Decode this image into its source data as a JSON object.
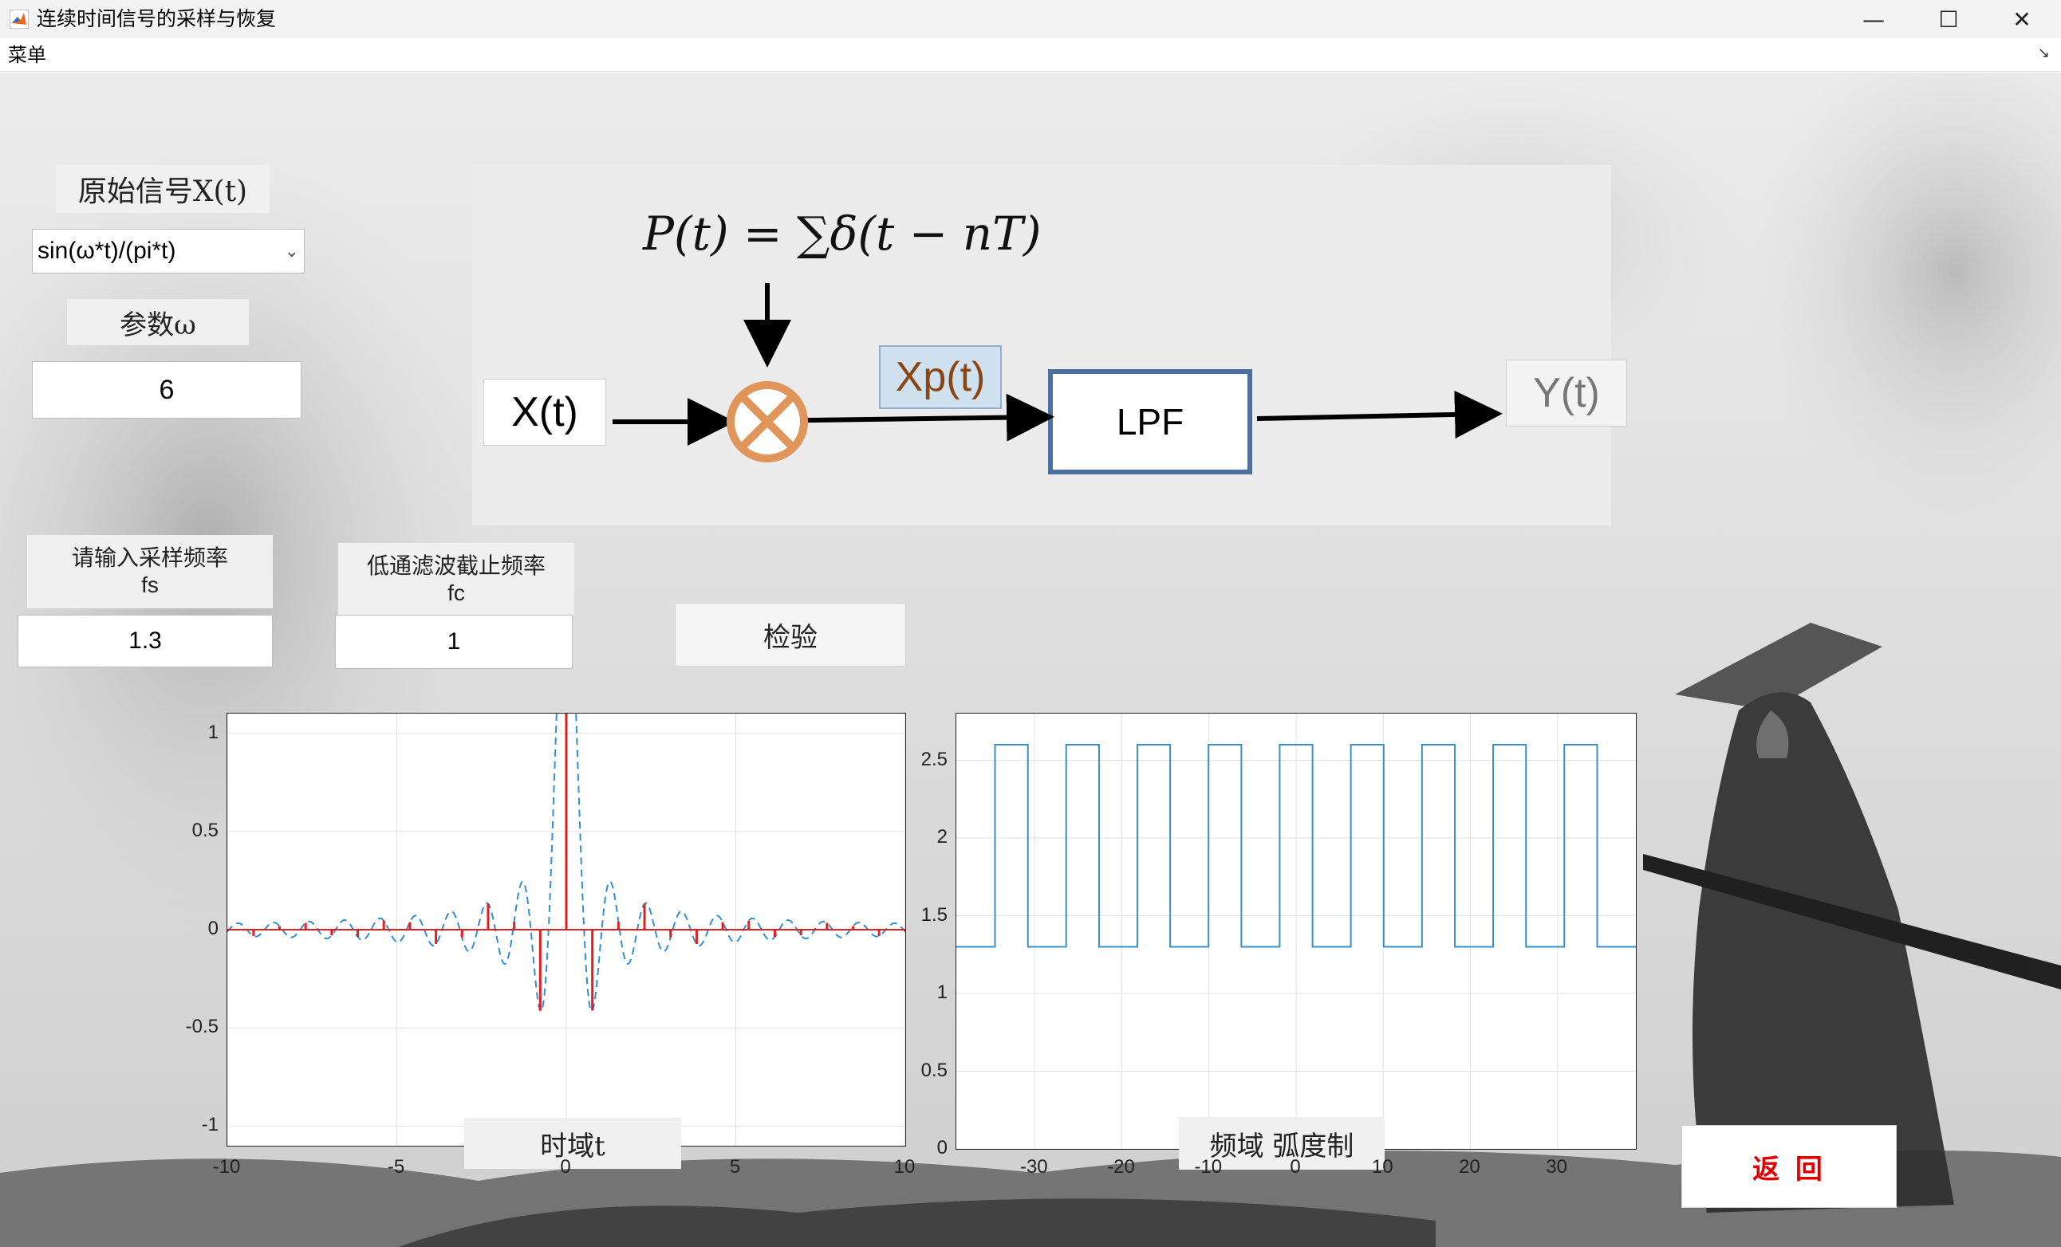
{
  "window": {
    "title": "连续时间信号的采样与恢复",
    "min_glyph": "—",
    "max_glyph": "☐",
    "close_glyph": "✕"
  },
  "menu": {
    "label": "菜单",
    "corner_glyph": "↘"
  },
  "signal_select": {
    "heading": "原始信号X(t)",
    "value": "sin(ω*t)/(pi*t)",
    "chevron": "⌄"
  },
  "omega": {
    "label": "参数ω",
    "value": "6"
  },
  "fs": {
    "label_line1": "请输入采样频率",
    "label_line2": "fs",
    "value": "1.3"
  },
  "fc": {
    "label_line1": "低通滤波截止频率",
    "label_line2": "fc",
    "value": "1"
  },
  "check_button": "检验",
  "return_button": "返 回",
  "diagram": {
    "pulse_formula": "P(t) = ∑δ(t − nT)",
    "input": "X(t)",
    "sampled": "Xp(t)",
    "filter": "LPF",
    "output": "Y(t)"
  },
  "time_plot": {
    "xlabel": "时域t",
    "xlim": [
      -10,
      10
    ],
    "ylim": [
      -1.1,
      1.1
    ],
    "xticks": [
      "-10",
      "-5",
      "0",
      "5",
      "10"
    ],
    "yticks": [
      "1",
      "0.5",
      "0",
      "-0.5",
      "-1"
    ]
  },
  "freq_plot": {
    "xlabel": "频域 弧度制",
    "xticks": [
      "-30",
      "-20",
      "-10",
      "0",
      "10",
      "20",
      "30"
    ],
    "yticks": [
      "2.5",
      "2",
      "1.5",
      "1",
      "0.5",
      "0"
    ]
  },
  "chart_data": [
    {
      "type": "line",
      "xlabel": "时域t",
      "xlim": [
        -10,
        10
      ],
      "ylim": [
        -1.1,
        1.1
      ],
      "grid": true,
      "series": [
        {
          "style": "dashed",
          "color": "#2f8fd8",
          "function": "sin(6*t)/(pi*t)"
        },
        {
          "style": "stem",
          "color": "#e02020",
          "sample_period": 0.769
        }
      ]
    },
    {
      "type": "line",
      "xlabel": "频域 弧度制",
      "xlim": [
        -39,
        39
      ],
      "ylim": [
        0,
        2.8
      ],
      "grid": true,
      "series": [
        {
          "color": "#3a8fc7",
          "low": 1.3,
          "high": 2.6,
          "period": 8.168,
          "pulse_width": 3.77
        }
      ]
    }
  ],
  "colors": {
    "accent_blue": "#4a6fa0",
    "multiplier_orange": "#e0965a",
    "xp_text": "#8b4513",
    "return_red": "#e00000"
  }
}
